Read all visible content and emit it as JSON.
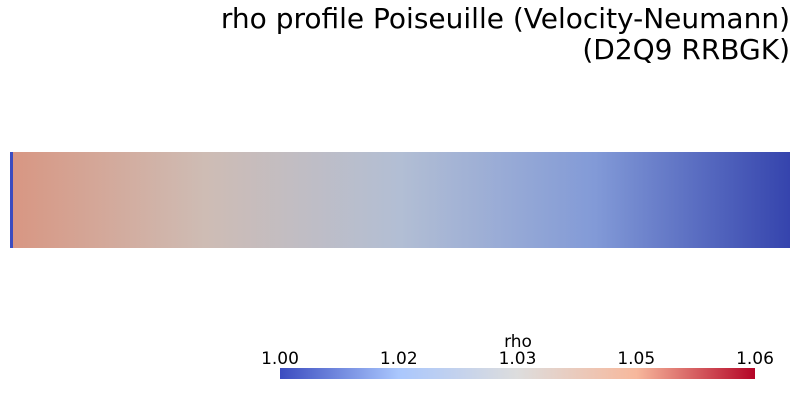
{
  "title": [
    "rho profile Poiseuille (Velocity-Neumann)",
    "(D2Q9 RRBGK)"
  ],
  "field": {
    "x": [
      0,
      0.25,
      0.5,
      0.75,
      1
    ],
    "rho": [
      1.048,
      1.036,
      1.024,
      1.012,
      1.0
    ]
  },
  "colorbar": {
    "title": "rho",
    "range": [
      1.0,
      1.062
    ],
    "colormap": [
      "#3b4cc0",
      "#aac7fd",
      "#dddddd",
      "#f7b89c",
      "#b40426"
    ],
    "ticks": [
      {
        "value": 1.0,
        "label": "1.00"
      },
      {
        "value": 1.0155,
        "label": "1.02"
      },
      {
        "value": 1.031,
        "label": "1.03"
      },
      {
        "value": 1.0465,
        "label": "1.05"
      },
      {
        "value": 1.062,
        "label": "1.06"
      }
    ]
  }
}
